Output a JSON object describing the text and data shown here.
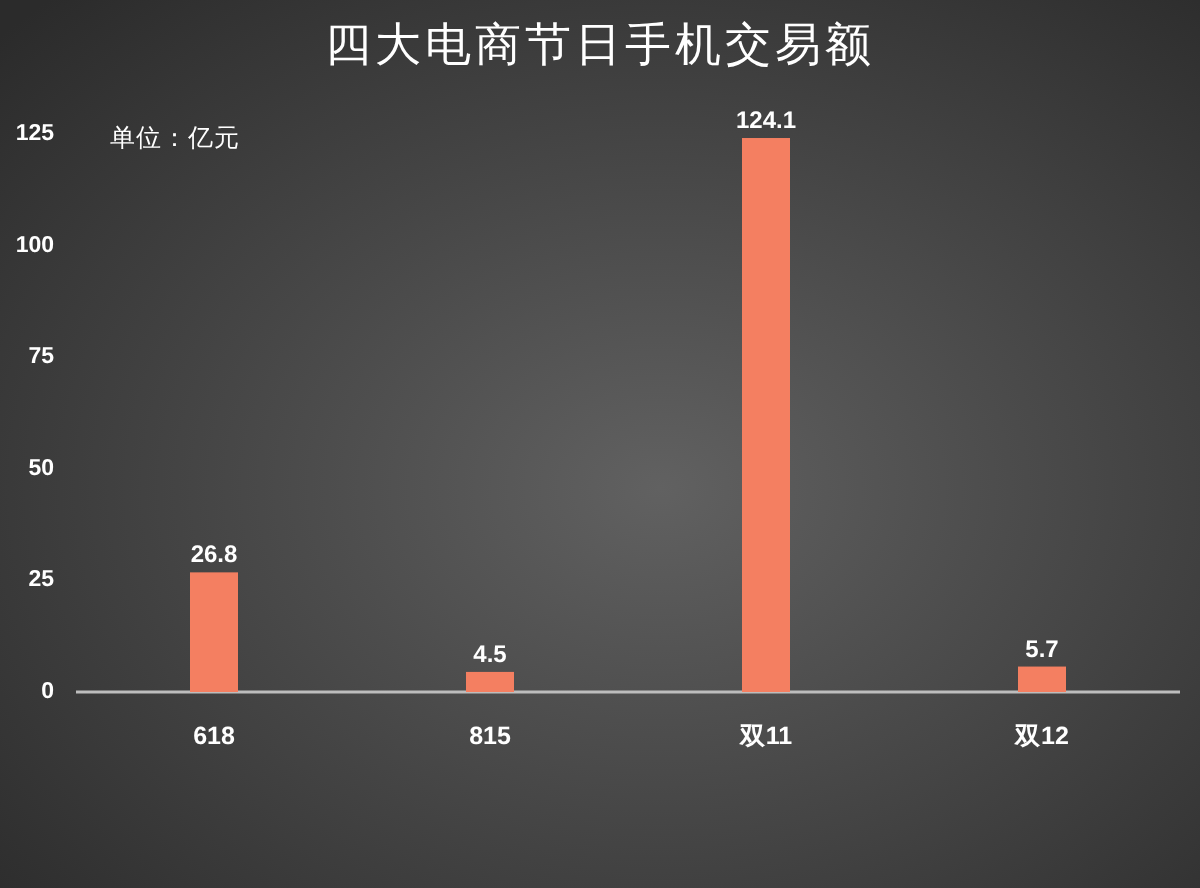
{
  "chart_data": {
    "type": "bar",
    "title": "四大电商节日手机交易额",
    "annotations": [
      "单位：亿元"
    ],
    "categories": [
      "618",
      "815",
      "双11",
      "双12"
    ],
    "values": [
      26.8,
      4.5,
      124.1,
      5.7
    ],
    "color": "#f47f61",
    "ylim": [
      0,
      125
    ],
    "yticks": [
      0,
      25,
      50,
      75,
      100,
      125
    ],
    "data_labels": true
  }
}
